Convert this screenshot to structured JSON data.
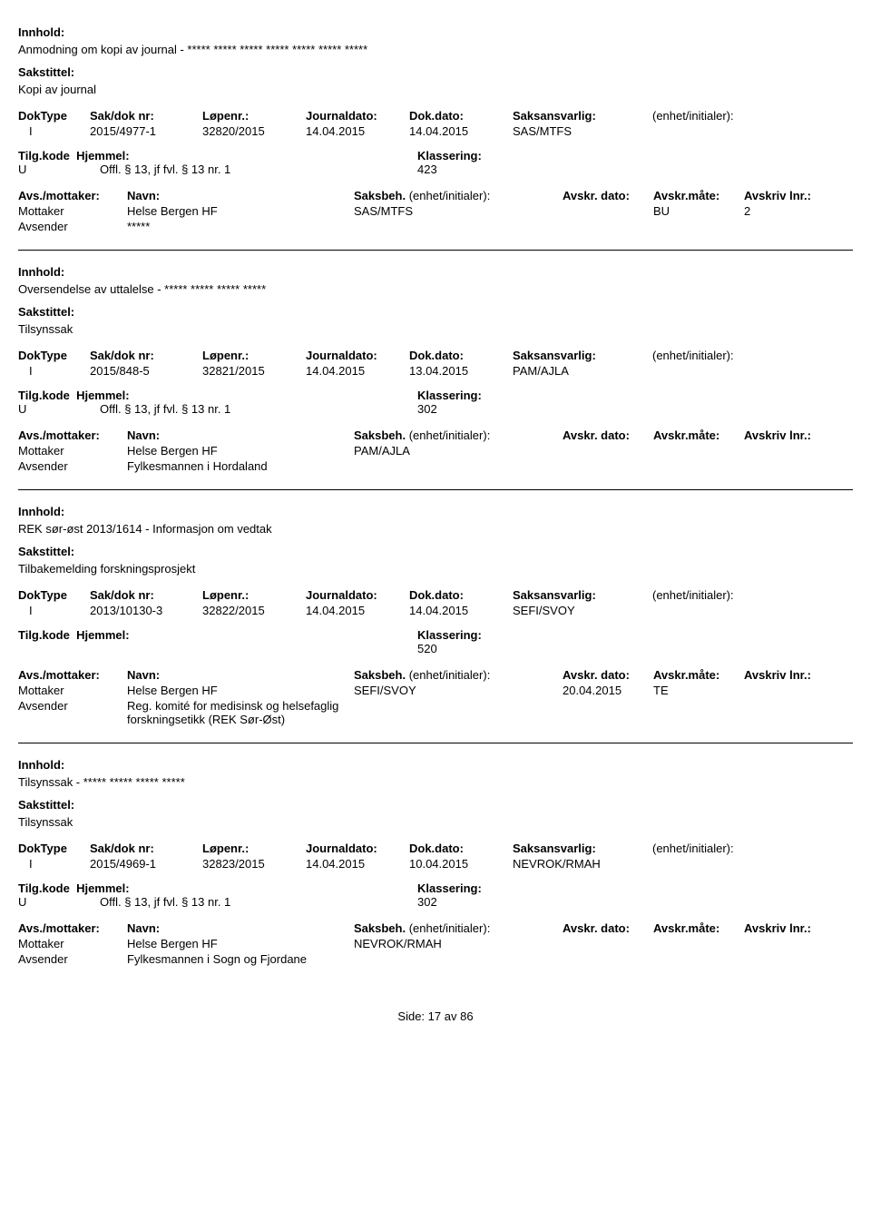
{
  "labels": {
    "innhold": "Innhold:",
    "sakstittel": "Sakstittel:",
    "doktype": "DokType",
    "sakdok": "Sak/dok nr:",
    "lopenr": "Løpenr.:",
    "journaldato": "Journaldato:",
    "dokdato": "Dok.dato:",
    "saksansvarlig": "Saksansvarlig:",
    "enhet": "(enhet/initialer):",
    "tilgkode": "Tilg.kode",
    "hjemmel": "Hjemmel:",
    "klassering": "Klassering:",
    "avsmottaker": "Avs./mottaker:",
    "navn": "Navn:",
    "saksbeh": "Saksbeh.",
    "saksbeh_enhet": "(enhet/initialer):",
    "avskr_dato": "Avskr. dato:",
    "avskr_mate": "Avskr.måte:",
    "avskriv_lnr": "Avskriv lnr.:",
    "mottaker": "Mottaker",
    "avsender": "Avsender",
    "side": "Side:",
    "av": "av"
  },
  "page": {
    "current": "17",
    "total": "86"
  },
  "records": [
    {
      "innhold": "Anmodning om kopi av journal - ***** ***** ***** ***** ***** ***** *****",
      "sakstittel": "Kopi av journal",
      "doktype": "I",
      "sakdok": "2015/4977-1",
      "lopenr": "32820/2015",
      "journaldato": "14.04.2015",
      "dokdato": "14.04.2015",
      "saksansvarlig": "SAS/MTFS",
      "tilgkode": "U",
      "hjemmel": "Offl. § 13, jf fvl. § 13 nr. 1",
      "klassering": "423",
      "parties": [
        {
          "role": "Mottaker",
          "navn": "Helse Bergen HF",
          "saksbeh": "SAS/MTFS",
          "avskr_dato": "",
          "avskr_mate": "BU",
          "avskriv_lnr": "2"
        },
        {
          "role": "Avsender",
          "navn": "*****",
          "saksbeh": "",
          "avskr_dato": "",
          "avskr_mate": "",
          "avskriv_lnr": ""
        }
      ]
    },
    {
      "innhold": "Oversendelse av uttalelse - ***** ***** ***** *****",
      "sakstittel": "Tilsynssak",
      "doktype": "I",
      "sakdok": "2015/848-5",
      "lopenr": "32821/2015",
      "journaldato": "14.04.2015",
      "dokdato": "13.04.2015",
      "saksansvarlig": "PAM/AJLA",
      "tilgkode": "U",
      "hjemmel": "Offl. § 13, jf fvl. § 13 nr. 1",
      "klassering": "302",
      "parties": [
        {
          "role": "Mottaker",
          "navn": "Helse Bergen HF",
          "saksbeh": "PAM/AJLA",
          "avskr_dato": "",
          "avskr_mate": "",
          "avskriv_lnr": ""
        },
        {
          "role": "Avsender",
          "navn": "Fylkesmannen i Hordaland",
          "saksbeh": "",
          "avskr_dato": "",
          "avskr_mate": "",
          "avskriv_lnr": ""
        }
      ]
    },
    {
      "innhold": "REK sør-øst 2013/1614 - Informasjon om vedtak",
      "sakstittel": "Tilbakemelding forskningsprosjekt",
      "doktype": "I",
      "sakdok": "2013/10130-3",
      "lopenr": "32822/2015",
      "journaldato": "14.04.2015",
      "dokdato": "14.04.2015",
      "saksansvarlig": "SEFI/SVOY",
      "tilgkode": "",
      "hjemmel": "",
      "klassering": "520",
      "parties": [
        {
          "role": "Mottaker",
          "navn": "Helse Bergen HF",
          "saksbeh": "SEFI/SVOY",
          "avskr_dato": "20.04.2015",
          "avskr_mate": "TE",
          "avskriv_lnr": ""
        },
        {
          "role": "Avsender",
          "navn": "Reg. komité for medisinsk og helsefaglig forskningsetikk (REK Sør-Øst)",
          "saksbeh": "",
          "avskr_dato": "",
          "avskr_mate": "",
          "avskriv_lnr": ""
        }
      ]
    },
    {
      "innhold": "Tilsynssak - ***** ***** ***** *****",
      "sakstittel": "Tilsynssak",
      "doktype": "I",
      "sakdok": "2015/4969-1",
      "lopenr": "32823/2015",
      "journaldato": "14.04.2015",
      "dokdato": "10.04.2015",
      "saksansvarlig": "NEVROK/RMAH",
      "tilgkode": "U",
      "hjemmel": "Offl. § 13, jf fvl. § 13 nr. 1",
      "klassering": "302",
      "parties": [
        {
          "role": "Mottaker",
          "navn": "Helse Bergen HF",
          "saksbeh": "NEVROK/RMAH",
          "avskr_dato": "",
          "avskr_mate": "",
          "avskriv_lnr": ""
        },
        {
          "role": "Avsender",
          "navn": "Fylkesmannen i Sogn og Fjordane",
          "saksbeh": "",
          "avskr_dato": "",
          "avskr_mate": "",
          "avskriv_lnr": ""
        }
      ]
    }
  ]
}
